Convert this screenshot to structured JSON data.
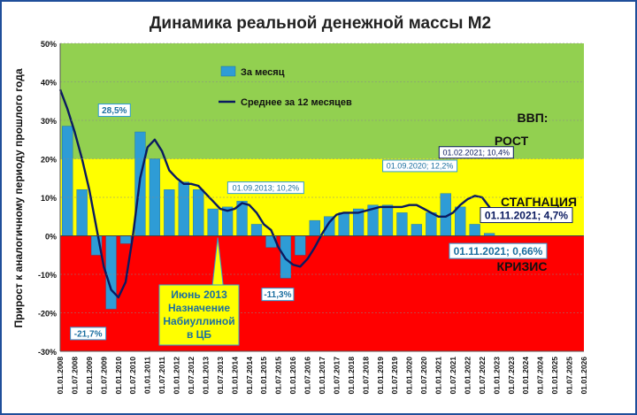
{
  "chart_data": {
    "type": "bar",
    "title": "Динамика реальной денежной массы М2",
    "ylabel": "Прирост к аналогичному периоду прошлого года",
    "ylim": [
      -30,
      50
    ],
    "yticks": [
      -30,
      -20,
      -10,
      0,
      10,
      20,
      30,
      40,
      50
    ],
    "ytick_labels": [
      "-30%",
      "-20%",
      "-10%",
      "0%",
      "10%",
      "20%",
      "30%",
      "40%",
      "50%"
    ],
    "x_start": "2008-01",
    "x_end": "2026-01",
    "xtick_labels": [
      "01.01.2008",
      "01.07.2008",
      "01.01.2009",
      "01.07.2009",
      "01.01.2010",
      "01.07.2010",
      "01.01.2011",
      "01.07.2011",
      "01.01.2012",
      "01.07.2012",
      "01.01.2013",
      "01.07.2013",
      "01.01.2014",
      "01.07.2014",
      "01.01.2015",
      "01.07.2015",
      "01.01.2016",
      "01.07.2016",
      "01.01.2017",
      "01.07.2017",
      "01.01.2018",
      "01.07.2018",
      "01.01.2019",
      "01.07.2019",
      "01.01.2020",
      "01.07.2020",
      "01.01.2021",
      "01.07.2021",
      "01.01.2022",
      "01.07.2022",
      "01.01.2023",
      "01.07.2023",
      "01.01.2024",
      "01.07.2024",
      "01.01.2025",
      "01.07.2025",
      "01.01.2026"
    ],
    "zones": [
      {
        "label": "ВВП:",
        "from": 20,
        "to": 50,
        "color": "#92d050"
      },
      {
        "label": "РОСТ",
        "from": 20,
        "to": 50,
        "color": "#92d050"
      },
      {
        "label": "СТАГНАЦИЯ",
        "from": 0,
        "to": 20,
        "color": "#ffff00"
      },
      {
        "label": "КРИЗИС",
        "from": -30,
        "to": 0,
        "color": "#ff0000"
      }
    ],
    "legend_position": "top-left",
    "series": [
      {
        "name": "За месяц",
        "kind": "bar",
        "color": "#2e9cd6",
        "step_months": 6,
        "values": [
          28.5,
          12,
          -5,
          -19,
          -2,
          27,
          20,
          12,
          14,
          12,
          7,
          7.5,
          9,
          3,
          -3,
          -11,
          -5,
          4,
          5,
          6,
          7,
          8,
          8,
          6,
          3,
          6,
          11,
          7.5,
          3,
          0.66
        ]
      },
      {
        "name": "Среднее за 12 месяцев",
        "kind": "line",
        "color": "#0a1a60",
        "step_months": 3,
        "values": [
          38,
          33,
          27,
          20,
          12,
          2,
          -8,
          -14,
          -16,
          -12,
          0,
          15,
          23,
          25,
          22,
          17,
          15,
          13.5,
          13.5,
          13,
          11,
          9,
          7,
          6.5,
          7,
          8.5,
          8,
          6,
          3,
          1.5,
          -3,
          -6,
          -7.5,
          -8,
          -6,
          -3,
          0.5,
          3.5,
          5.5,
          6,
          6,
          6,
          6.5,
          7,
          7.5,
          7.5,
          7.5,
          7.5,
          8,
          8,
          7,
          6,
          5,
          5,
          6,
          8,
          9.5,
          10.4,
          10,
          7.5,
          4.7
        ]
      }
    ],
    "annotations": [
      {
        "text": "28,5%",
        "x": "2010-03",
        "y": 28.5
      },
      {
        "text": "-21,7%",
        "x": "2009-02",
        "y": -21.7
      },
      {
        "text": "01.09.2013; 10,2%",
        "x": "2013-09",
        "y": 10.2
      },
      {
        "text": "-11,3%",
        "x": "2015-06",
        "y": -11.3
      },
      {
        "text": "01.09.2020; 12,2%",
        "x": "2020-09",
        "y": 12.2
      },
      {
        "text": "01.02.2021; 10,4%",
        "x": "2021-02",
        "y": 10.4
      },
      {
        "text": "01.11.2021; 4,7%",
        "x": "2021-11",
        "y": 4.7
      },
      {
        "text": "01.11.2021; 0,66%",
        "x": "2021-11",
        "y": 0.66
      },
      {
        "text": "Июнь 2013 Назначение Набиуллиной в ЦБ",
        "x": "2013-06",
        "y": 0
      }
    ]
  }
}
